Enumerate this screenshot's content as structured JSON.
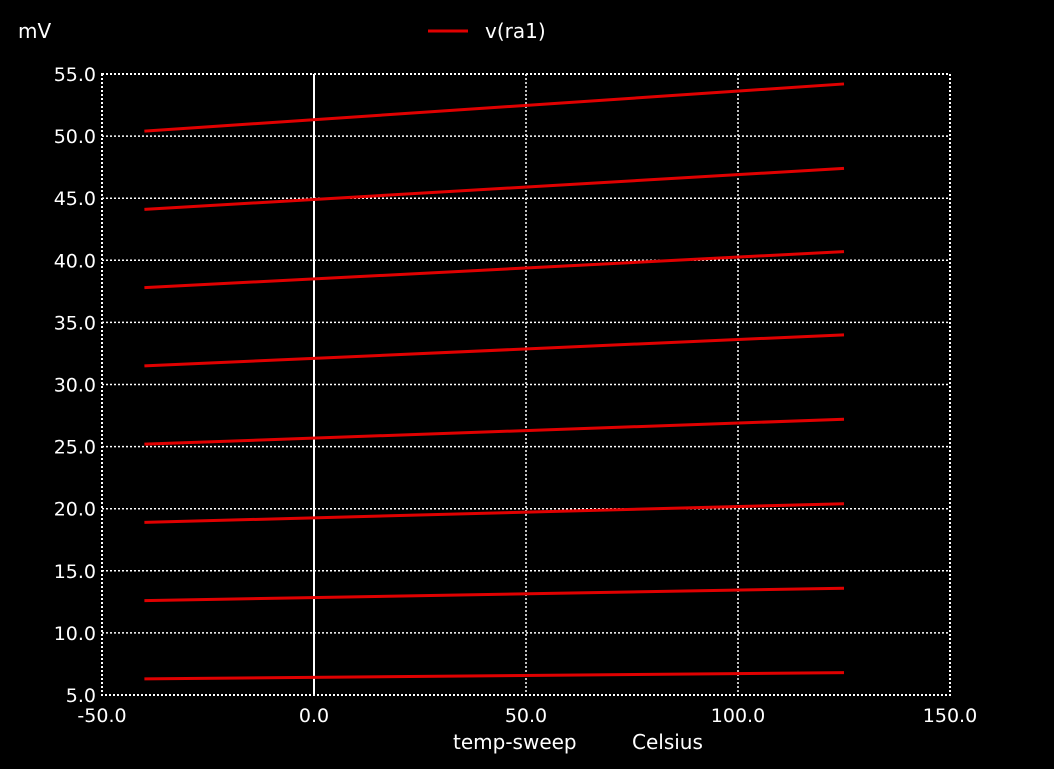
{
  "chart_data": {
    "type": "line",
    "y_unit": "mV",
    "xlabel": "temp-sweep",
    "x_unit": "Celsius",
    "legend_label": "v(ra1)",
    "legend_color": "#e00000",
    "legend_position": "top-center",
    "background": "#000000",
    "grid": true,
    "xlim": [
      -50,
      150
    ],
    "ylim": [
      5,
      55
    ],
    "x_ticks": [
      "-50.0",
      "0.0",
      "50.0",
      "100.0",
      "150.0"
    ],
    "y_ticks": [
      "5.0",
      "10.0",
      "15.0",
      "20.0",
      "25.0",
      "30.0",
      "35.0",
      "40.0",
      "45.0",
      "50.0",
      "55.0"
    ],
    "x": [
      -40,
      125
    ],
    "series": [
      {
        "values": [
          6.3,
          6.8
        ]
      },
      {
        "values": [
          12.6,
          13.6
        ]
      },
      {
        "values": [
          18.9,
          20.4
        ]
      },
      {
        "values": [
          25.2,
          27.2
        ]
      },
      {
        "values": [
          31.5,
          34.0
        ]
      },
      {
        "values": [
          37.8,
          40.7
        ]
      },
      {
        "values": [
          44.1,
          47.4
        ]
      },
      {
        "values": [
          50.4,
          54.2
        ]
      }
    ]
  }
}
